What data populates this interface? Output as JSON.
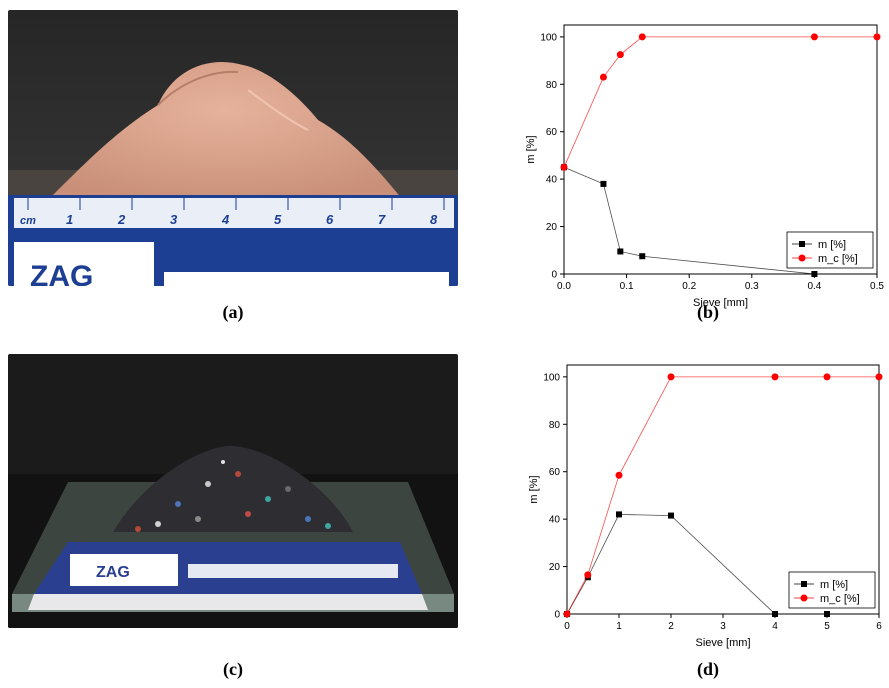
{
  "captions": {
    "a": "(a)",
    "b": "(b)",
    "c": "(c)",
    "d": "(d)"
  },
  "photos": {
    "a": {
      "ruler_unit": "cm",
      "ruler_numbers": [
        "1",
        "2",
        "3",
        "4",
        "5",
        "6",
        "7",
        "8"
      ],
      "logo": "ZAG",
      "colors": {
        "powder": "#d9a18a",
        "ruler_blue": "#1c3f93",
        "background": "#2f2f2f"
      }
    },
    "c": {
      "logo": "ZAG",
      "colors": {
        "ruler_blue": "#2a3f8f",
        "background": "#1c1c1c",
        "glass": "#a9c1b6"
      }
    }
  },
  "chart_data": [
    {
      "type": "line",
      "panel": "b",
      "xlabel": "Sieve [mm]",
      "ylabel": "m [%]",
      "xlim": [
        0,
        0.5
      ],
      "ylim": [
        0,
        105
      ],
      "x_ticks": [
        "0.0",
        "0.1",
        "0.2",
        "0.3",
        "0.4",
        "0.5"
      ],
      "y_ticks": [
        "0",
        "20",
        "40",
        "60",
        "80",
        "100"
      ],
      "legend_position": "bottom-right",
      "series": [
        {
          "name": "m [%]",
          "marker": "square",
          "color": "#000000",
          "x": [
            0,
            0.063,
            0.09,
            0.125,
            0.4
          ],
          "y": [
            45,
            38,
            9.5,
            7.5,
            0
          ]
        },
        {
          "name": "m_c [%]",
          "marker": "circle",
          "color": "#ff0000",
          "x": [
            0,
            0.063,
            0.09,
            0.125,
            0.4,
            0.5
          ],
          "y": [
            45,
            83,
            92.5,
            100,
            100,
            100
          ]
        }
      ]
    },
    {
      "type": "line",
      "panel": "d",
      "xlabel": "Sieve [mm]",
      "ylabel": "m [%]",
      "xlim": [
        0,
        6
      ],
      "ylim": [
        0,
        105
      ],
      "x_ticks": [
        "0",
        "1",
        "2",
        "3",
        "4",
        "5",
        "6"
      ],
      "y_ticks": [
        "0",
        "20",
        "40",
        "60",
        "80",
        "100"
      ],
      "legend_position": "bottom-right",
      "series": [
        {
          "name": "m [%]",
          "marker": "square",
          "color": "#000000",
          "x": [
            0,
            0.4,
            1,
            2,
            4,
            5
          ],
          "y": [
            0,
            15.5,
            42,
            41.5,
            0,
            0
          ]
        },
        {
          "name": "m_c [%]",
          "marker": "circle",
          "color": "#ff0000",
          "x": [
            0,
            0.4,
            1,
            2,
            4,
            5,
            6
          ],
          "y": [
            0,
            16.5,
            58.5,
            100,
            100,
            100,
            100
          ]
        }
      ]
    }
  ]
}
